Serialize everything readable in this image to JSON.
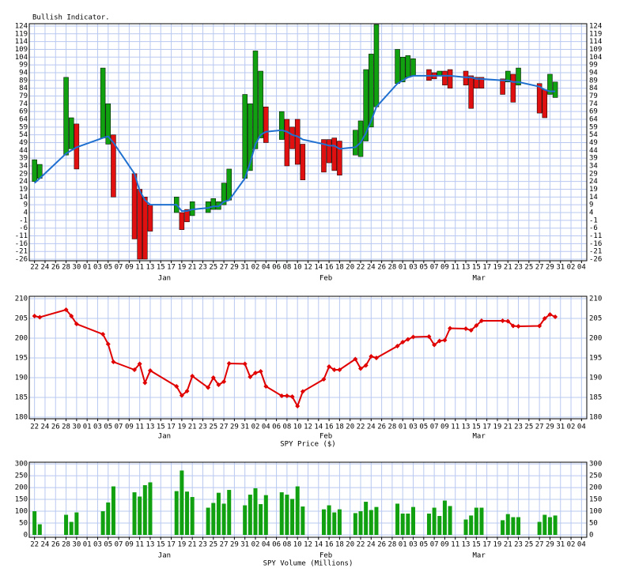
{
  "chart_data": [
    {
      "type": "bar_range",
      "title": "Bullish Indicator.",
      "x": [
        0,
        1,
        6,
        7,
        8,
        13,
        14,
        15,
        19,
        20,
        21,
        22,
        27,
        28,
        29,
        30,
        33,
        34,
        35,
        36,
        37,
        40,
        41,
        42,
        43,
        44,
        47,
        48,
        49,
        50,
        51,
        55,
        56,
        57,
        58,
        61,
        62,
        63,
        64,
        65,
        69,
        70,
        71,
        72,
        75,
        76,
        77,
        78,
        79,
        82,
        83,
        84,
        85,
        89,
        90,
        91,
        92,
        96,
        97,
        98,
        99
      ],
      "open": [
        24,
        26,
        41,
        45,
        61,
        52,
        48,
        54,
        29,
        19,
        14,
        9,
        4,
        4,
        6,
        2,
        4,
        6,
        6,
        9,
        12,
        26,
        31,
        45,
        52,
        72,
        51,
        64,
        59,
        64,
        48,
        51,
        51,
        52,
        50,
        41,
        40,
        50,
        59,
        72,
        87,
        88,
        91,
        92,
        96,
        94,
        92,
        95,
        96,
        95,
        92,
        91,
        91,
        90,
        88,
        93,
        86,
        87,
        83,
        80,
        78
      ],
      "close": [
        38,
        35,
        91,
        65,
        32,
        97,
        74,
        14,
        -13,
        -26,
        -26,
        -8,
        14,
        -7,
        -2,
        11,
        11,
        13,
        11,
        23,
        32,
        80,
        74,
        108,
        95,
        49,
        69,
        34,
        45,
        35,
        25,
        30,
        36,
        31,
        28,
        57,
        63,
        96,
        106,
        125,
        109,
        104,
        105,
        103,
        89,
        90,
        95,
        86,
        84,
        86,
        71,
        84,
        84,
        80,
        95,
        75,
        97,
        68,
        65,
        93,
        88
      ],
      "average": [
        23,
        26,
        42,
        44,
        46,
        52,
        53,
        49,
        29,
        18,
        12,
        9,
        9,
        5,
        5,
        6,
        7,
        8,
        8,
        11,
        12,
        26,
        36,
        48,
        54,
        56,
        57,
        56,
        54,
        53,
        51,
        48,
        47,
        47,
        45,
        46,
        49,
        55,
        63,
        72,
        87,
        89,
        91,
        92,
        92,
        92,
        92,
        92,
        92,
        91,
        91,
        90,
        90,
        89,
        89,
        88,
        88,
        85,
        83,
        82,
        82
      ],
      "up_color": "#10a010",
      "down_color": "#e01010",
      "line_color": "#2070d0",
      "xlim": [
        -1,
        105
      ],
      "ylim": [
        -27,
        125.5
      ],
      "xticks": [
        {
          "value": 0,
          "label": "22"
        },
        {
          "value": 2,
          "label": "24"
        },
        {
          "value": 4,
          "label": "26"
        },
        {
          "value": 6,
          "label": "28"
        },
        {
          "value": 8,
          "label": "30"
        },
        {
          "value": 10,
          "label": "01"
        },
        {
          "value": 12,
          "label": "03"
        },
        {
          "value": 14,
          "label": "05"
        },
        {
          "value": 16,
          "label": "07"
        },
        {
          "value": 18,
          "label": "09"
        },
        {
          "value": 20,
          "label": "11"
        },
        {
          "value": 22,
          "label": "13"
        },
        {
          "value": 24,
          "label": "15"
        },
        {
          "value": 26,
          "label": "17"
        },
        {
          "value": 28,
          "label": "19"
        },
        {
          "value": 30,
          "label": "21"
        },
        {
          "value": 32,
          "label": "23"
        },
        {
          "value": 34,
          "label": "25"
        },
        {
          "value": 36,
          "label": "27"
        },
        {
          "value": 38,
          "label": "29"
        },
        {
          "value": 40,
          "label": "31"
        },
        {
          "value": 42,
          "label": "02"
        },
        {
          "value": 44,
          "label": "04"
        },
        {
          "value": 46,
          "label": "06"
        },
        {
          "value": 48,
          "label": "08"
        },
        {
          "value": 50,
          "label": "10"
        },
        {
          "value": 52,
          "label": "12"
        },
        {
          "value": 54,
          "label": "14"
        },
        {
          "value": 56,
          "label": "16"
        },
        {
          "value": 58,
          "label": "18"
        },
        {
          "value": 60,
          "label": "20"
        },
        {
          "value": 62,
          "label": "22"
        },
        {
          "value": 64,
          "label": "24"
        },
        {
          "value": 66,
          "label": "26"
        },
        {
          "value": 68,
          "label": "28"
        },
        {
          "value": 70,
          "label": "01"
        },
        {
          "value": 72,
          "label": "03"
        },
        {
          "value": 74,
          "label": "05"
        },
        {
          "value": 76,
          "label": "07"
        },
        {
          "value": 78,
          "label": "09"
        },
        {
          "value": 80,
          "label": "11"
        },
        {
          "value": 82,
          "label": "13"
        },
        {
          "value": 84,
          "label": "15"
        },
        {
          "value": 86,
          "label": "17"
        },
        {
          "value": 88,
          "label": "19"
        },
        {
          "value": 90,
          "label": "21"
        },
        {
          "value": 92,
          "label": "23"
        },
        {
          "value": 94,
          "label": "25"
        },
        {
          "value": 96,
          "label": "27"
        },
        {
          "value": 98,
          "label": "29"
        },
        {
          "value": 100,
          "label": "31"
        },
        {
          "value": 102,
          "label": "02"
        },
        {
          "value": 104,
          "label": "04"
        }
      ],
      "month_ticks": [
        {
          "value": 24.7,
          "label": "Jan"
        },
        {
          "value": 55.4,
          "label": "Feb"
        },
        {
          "value": 84.5,
          "label": "Mar"
        }
      ],
      "yticks": [
        124,
        119,
        114,
        109,
        104,
        99,
        94,
        89,
        84,
        79,
        74,
        69,
        64,
        59,
        54,
        49,
        44,
        39,
        34,
        29,
        24,
        19,
        14,
        9,
        4,
        -1,
        -6,
        -11,
        -16,
        -21,
        -26
      ],
      "grid": true
    },
    {
      "type": "line",
      "xlabel": "SPY Price ($)",
      "x": [
        0,
        1,
        6,
        7,
        8,
        13,
        14,
        15,
        19,
        20,
        21,
        22,
        27,
        28,
        29,
        30,
        33,
        34,
        35,
        36,
        37,
        40,
        41,
        42,
        43,
        44,
        47,
        48,
        49,
        50,
        51,
        55,
        56,
        57,
        58,
        61,
        62,
        63,
        64,
        65,
        69,
        70,
        71,
        72,
        75,
        76,
        77,
        78,
        79,
        82,
        83,
        84,
        85,
        89,
        90,
        91,
        92,
        96,
        97,
        98,
        99
      ],
      "values": [
        205.6,
        205.3,
        207.2,
        205.6,
        203.6,
        201,
        198.5,
        194,
        192,
        193.5,
        188.7,
        191.8,
        187.8,
        185.5,
        186.6,
        190.4,
        187.5,
        190,
        188.2,
        189,
        193.6,
        193.5,
        190.2,
        191.2,
        191.6,
        187.8,
        185.4,
        185.4,
        185.2,
        182.8,
        186.5,
        189.6,
        192.8,
        192,
        192,
        194.7,
        192.3,
        193.1,
        195.4,
        195,
        198,
        199,
        199.7,
        200.3,
        200.4,
        198.3,
        199.3,
        199.5,
        202.5,
        202.4,
        202,
        203.2,
        204.4,
        204.4,
        204.3,
        203.1,
        203,
        203.1,
        205,
        206,
        205.4
      ],
      "color": "#e00000",
      "marker": "diamond",
      "xlim": [
        -1,
        105
      ],
      "ylim": [
        179.6,
        210.6
      ],
      "xticks": [
        {
          "value": 0,
          "label": "22"
        },
        {
          "value": 2,
          "label": "24"
        },
        {
          "value": 4,
          "label": "26"
        },
        {
          "value": 6,
          "label": "28"
        },
        {
          "value": 8,
          "label": "30"
        },
        {
          "value": 10,
          "label": "01"
        },
        {
          "value": 12,
          "label": "03"
        },
        {
          "value": 14,
          "label": "05"
        },
        {
          "value": 16,
          "label": "07"
        },
        {
          "value": 18,
          "label": "09"
        },
        {
          "value": 20,
          "label": "11"
        },
        {
          "value": 22,
          "label": "13"
        },
        {
          "value": 24,
          "label": "15"
        },
        {
          "value": 26,
          "label": "17"
        },
        {
          "value": 28,
          "label": "19"
        },
        {
          "value": 30,
          "label": "21"
        },
        {
          "value": 32,
          "label": "23"
        },
        {
          "value": 34,
          "label": "25"
        },
        {
          "value": 36,
          "label": "27"
        },
        {
          "value": 38,
          "label": "29"
        },
        {
          "value": 40,
          "label": "31"
        },
        {
          "value": 42,
          "label": "02"
        },
        {
          "value": 44,
          "label": "04"
        },
        {
          "value": 46,
          "label": "06"
        },
        {
          "value": 48,
          "label": "08"
        },
        {
          "value": 50,
          "label": "10"
        },
        {
          "value": 52,
          "label": "12"
        },
        {
          "value": 54,
          "label": "14"
        },
        {
          "value": 56,
          "label": "16"
        },
        {
          "value": 58,
          "label": "18"
        },
        {
          "value": 60,
          "label": "20"
        },
        {
          "value": 62,
          "label": "22"
        },
        {
          "value": 64,
          "label": "24"
        },
        {
          "value": 66,
          "label": "26"
        },
        {
          "value": 68,
          "label": "28"
        },
        {
          "value": 70,
          "label": "01"
        },
        {
          "value": 72,
          "label": "03"
        },
        {
          "value": 74,
          "label": "05"
        },
        {
          "value": 76,
          "label": "07"
        },
        {
          "value": 78,
          "label": "09"
        },
        {
          "value": 80,
          "label": "11"
        },
        {
          "value": 82,
          "label": "13"
        },
        {
          "value": 84,
          "label": "15"
        },
        {
          "value": 86,
          "label": "17"
        },
        {
          "value": 88,
          "label": "19"
        },
        {
          "value": 90,
          "label": "21"
        },
        {
          "value": 92,
          "label": "23"
        },
        {
          "value": 94,
          "label": "25"
        },
        {
          "value": 96,
          "label": "27"
        },
        {
          "value": 98,
          "label": "29"
        },
        {
          "value": 100,
          "label": "31"
        },
        {
          "value": 102,
          "label": "02"
        },
        {
          "value": 104,
          "label": "04"
        }
      ],
      "month_ticks": [
        {
          "value": 24.7,
          "label": "Jan"
        },
        {
          "value": 55.4,
          "label": "Feb"
        },
        {
          "value": 84.5,
          "label": "Mar"
        }
      ],
      "yticks": [
        180,
        185,
        190,
        195,
        200,
        205,
        210
      ],
      "grid": true
    },
    {
      "type": "bar",
      "xlabel": "SPY Volume (Millions)",
      "x": [
        0,
        1,
        6,
        7,
        8,
        13,
        14,
        15,
        19,
        20,
        21,
        22,
        27,
        28,
        29,
        30,
        33,
        34,
        35,
        36,
        37,
        40,
        41,
        42,
        43,
        44,
        47,
        48,
        49,
        50,
        51,
        55,
        56,
        57,
        58,
        61,
        62,
        63,
        64,
        65,
        69,
        70,
        71,
        72,
        75,
        76,
        77,
        78,
        79,
        82,
        83,
        84,
        85,
        89,
        90,
        91,
        92,
        96,
        97,
        98,
        99
      ],
      "values": [
        100,
        45,
        85,
        55,
        95,
        100,
        137,
        205,
        180,
        162,
        210,
        222,
        185,
        272,
        183,
        160,
        115,
        135,
        178,
        132,
        190,
        125,
        170,
        197,
        130,
        168,
        180,
        170,
        152,
        205,
        120,
        108,
        125,
        95,
        108,
        92,
        100,
        140,
        105,
        118,
        132,
        90,
        90,
        118,
        90,
        115,
        80,
        145,
        122,
        65,
        82,
        115,
        115,
        62,
        88,
        75,
        75,
        55,
        85,
        75,
        82
      ],
      "color": "#10a010",
      "xlim": [
        -1,
        105
      ],
      "ylim": [
        -10,
        307
      ],
      "xticks": [
        {
          "value": 0,
          "label": "22"
        },
        {
          "value": 2,
          "label": "24"
        },
        {
          "value": 4,
          "label": "26"
        },
        {
          "value": 6,
          "label": "28"
        },
        {
          "value": 8,
          "label": "30"
        },
        {
          "value": 10,
          "label": "01"
        },
        {
          "value": 12,
          "label": "03"
        },
        {
          "value": 14,
          "label": "05"
        },
        {
          "value": 16,
          "label": "07"
        },
        {
          "value": 18,
          "label": "09"
        },
        {
          "value": 20,
          "label": "11"
        },
        {
          "value": 22,
          "label": "13"
        },
        {
          "value": 24,
          "label": "15"
        },
        {
          "value": 26,
          "label": "17"
        },
        {
          "value": 28,
          "label": "19"
        },
        {
          "value": 30,
          "label": "21"
        },
        {
          "value": 32,
          "label": "23"
        },
        {
          "value": 34,
          "label": "25"
        },
        {
          "value": 36,
          "label": "27"
        },
        {
          "value": 38,
          "label": "29"
        },
        {
          "value": 40,
          "label": "31"
        },
        {
          "value": 42,
          "label": "02"
        },
        {
          "value": 44,
          "label": "04"
        },
        {
          "value": 46,
          "label": "06"
        },
        {
          "value": 48,
          "label": "08"
        },
        {
          "value": 50,
          "label": "10"
        },
        {
          "value": 52,
          "label": "12"
        },
        {
          "value": 54,
          "label": "14"
        },
        {
          "value": 56,
          "label": "16"
        },
        {
          "value": 58,
          "label": "18"
        },
        {
          "value": 60,
          "label": "20"
        },
        {
          "value": 62,
          "label": "22"
        },
        {
          "value": 64,
          "label": "24"
        },
        {
          "value": 66,
          "label": "26"
        },
        {
          "value": 68,
          "label": "28"
        },
        {
          "value": 70,
          "label": "01"
        },
        {
          "value": 72,
          "label": "03"
        },
        {
          "value": 74,
          "label": "05"
        },
        {
          "value": 76,
          "label": "07"
        },
        {
          "value": 78,
          "label": "09"
        },
        {
          "value": 80,
          "label": "11"
        },
        {
          "value": 82,
          "label": "13"
        },
        {
          "value": 84,
          "label": "15"
        },
        {
          "value": 86,
          "label": "17"
        },
        {
          "value": 88,
          "label": "19"
        },
        {
          "value": 90,
          "label": "21"
        },
        {
          "value": 92,
          "label": "23"
        },
        {
          "value": 94,
          "label": "25"
        },
        {
          "value": 96,
          "label": "27"
        },
        {
          "value": 98,
          "label": "29"
        },
        {
          "value": 100,
          "label": "31"
        },
        {
          "value": 102,
          "label": "02"
        },
        {
          "value": 104,
          "label": "04"
        }
      ],
      "month_ticks": [
        {
          "value": 24.7,
          "label": "Jan"
        },
        {
          "value": 55.4,
          "label": "Feb"
        },
        {
          "value": 84.5,
          "label": "Mar"
        }
      ],
      "yticks": [
        0,
        50,
        100,
        150,
        200,
        250,
        300
      ],
      "grid": true
    }
  ]
}
